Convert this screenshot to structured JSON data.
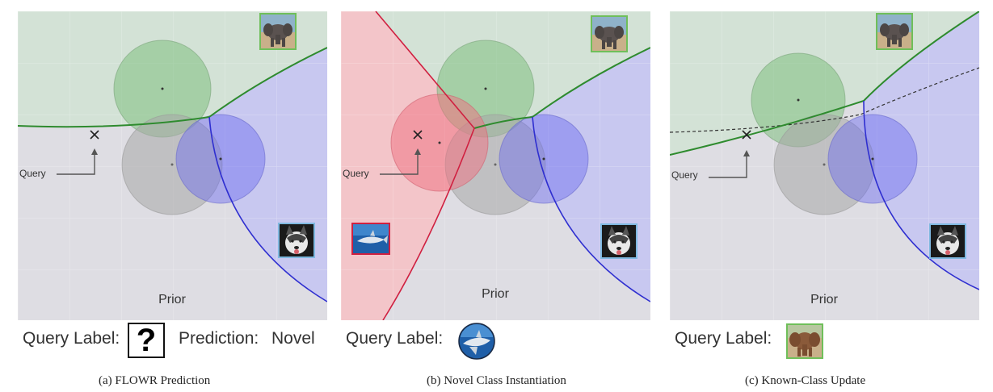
{
  "panels": [
    {
      "caption": "(a) FLOWR Prediction",
      "prior_label": "Prior",
      "query_text": "Query",
      "query_label_text": "Query Label:",
      "query_label_value": "?",
      "prediction_text": "Prediction:",
      "prediction_value": "Novel"
    },
    {
      "caption": "(b) Novel Class Instantiation",
      "prior_label": "Prior",
      "query_text": "Query",
      "query_label_text": "Query Label:",
      "query_label_icon": "shark-thumbnail-icon"
    },
    {
      "caption": "(c) Known-Class Update",
      "prior_label": "Prior",
      "query_text": "Query",
      "query_label_text": "Query Label:",
      "query_label_icon": "elephant-thumbnail-icon"
    }
  ],
  "colors": {
    "background": "#dedde3",
    "elephant_region": "#d3e2d6",
    "dog_region": "#c8c8f0",
    "shark_region": "#f3c5c9",
    "green_line": "#2e8b2e",
    "blue_line": "#2f2fd0",
    "red_line": "#d02040"
  },
  "icons": [
    "elephant-thumbnail-icon",
    "husky-thumbnail-icon",
    "shark-thumbnail-icon",
    "cross-marker-icon",
    "arrow-icon"
  ]
}
